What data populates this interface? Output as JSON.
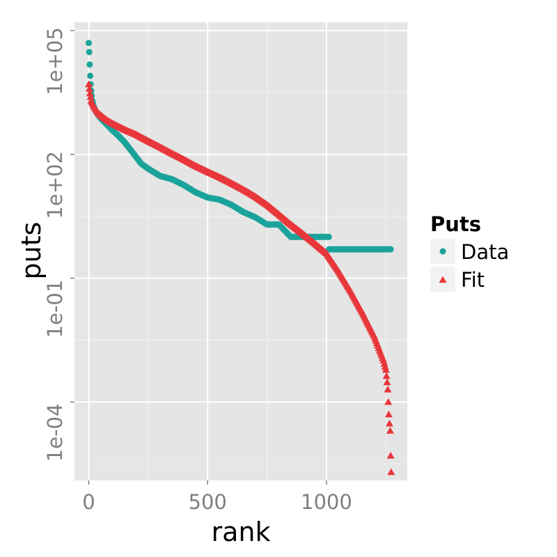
{
  "chart_data": {
    "type": "scatter",
    "xlabel": "rank",
    "ylabel": "puts",
    "xlim": [
      -60,
      1340
    ],
    "ylim_log10": [
      -5.9,
      5.2
    ],
    "y_scale": "log10",
    "grid": true,
    "legend_placement": "right",
    "x_ticks": [
      0,
      500,
      1000
    ],
    "x_tick_labels": [
      "0",
      "500",
      "1000"
    ],
    "y_ticks": [
      0.0001,
      0.1,
      100.0,
      100000.0
    ],
    "y_tick_labels": [
      "1e-04",
      "1e-01",
      "1e+02",
      "1e+05"
    ],
    "legend": {
      "title": "Puts",
      "entries": [
        {
          "label": "Data",
          "color": "#1aa39a",
          "shape": "circle"
        },
        {
          "label": "Fit",
          "color": "#e8363a",
          "shape": "triangle"
        }
      ]
    },
    "series": [
      {
        "name": "Data",
        "color": "#1aa39a",
        "shape": "circle",
        "points": [
          [
            0,
            50000
          ],
          [
            2,
            30000
          ],
          [
            4,
            15000
          ],
          [
            6,
            8000
          ],
          [
            8,
            5000
          ],
          [
            10,
            3500
          ],
          [
            15,
            2000
          ],
          [
            20,
            1500
          ],
          [
            30,
            1100
          ],
          [
            40,
            900
          ],
          [
            50,
            750
          ],
          [
            60,
            650
          ],
          [
            80,
            500
          ],
          [
            100,
            380
          ],
          [
            120,
            300
          ],
          [
            150,
            200
          ],
          [
            180,
            120
          ],
          [
            200,
            85
          ],
          [
            220,
            60
          ],
          [
            250,
            45
          ],
          [
            300,
            30
          ],
          [
            350,
            25
          ],
          [
            400,
            18
          ],
          [
            450,
            12
          ],
          [
            500,
            9
          ],
          [
            550,
            8
          ],
          [
            600,
            6
          ],
          [
            650,
            4
          ],
          [
            700,
            3
          ],
          [
            750,
            2
          ],
          [
            800,
            2
          ],
          [
            850,
            1
          ],
          [
            900,
            1
          ],
          [
            950,
            1
          ],
          [
            1000,
            1
          ],
          [
            1010,
            1
          ],
          [
            1010,
            0.5
          ],
          [
            1050,
            0.5
          ],
          [
            1100,
            0.5
          ],
          [
            1150,
            0.5
          ],
          [
            1200,
            0.5
          ],
          [
            1250,
            0.5
          ],
          [
            1270,
            0.5
          ]
        ]
      },
      {
        "name": "Fit",
        "color": "#e8363a",
        "shape": "triangle",
        "points": [
          [
            0,
            5000
          ],
          [
            5,
            3000
          ],
          [
            10,
            2000
          ],
          [
            20,
            1500
          ],
          [
            40,
            1000
          ],
          [
            60,
            800
          ],
          [
            80,
            650
          ],
          [
            100,
            560
          ],
          [
            150,
            400
          ],
          [
            200,
            300
          ],
          [
            250,
            210
          ],
          [
            300,
            150
          ],
          [
            350,
            105
          ],
          [
            400,
            75
          ],
          [
            450,
            52
          ],
          [
            500,
            38
          ],
          [
            550,
            28
          ],
          [
            600,
            20
          ],
          [
            650,
            14
          ],
          [
            700,
            9.5
          ],
          [
            750,
            6
          ],
          [
            800,
            3.5
          ],
          [
            850,
            2
          ],
          [
            900,
            1.2
          ],
          [
            950,
            0.7
          ],
          [
            1000,
            0.4
          ],
          [
            1050,
            0.15
          ],
          [
            1100,
            0.05
          ],
          [
            1150,
            0.015
          ],
          [
            1200,
            0.004
          ],
          [
            1220,
            0.002
          ],
          [
            1240,
            0.001
          ],
          [
            1250,
            0.0006
          ],
          [
            1255,
            0.0003
          ],
          [
            1258,
            0.0002
          ],
          [
            1260,
            0.0001
          ],
          [
            1262,
            5e-05
          ],
          [
            1265,
            3e-05
          ],
          [
            1268,
            2e-05
          ],
          [
            1270,
            5e-06
          ],
          [
            1272,
            2e-06
          ]
        ]
      }
    ]
  }
}
